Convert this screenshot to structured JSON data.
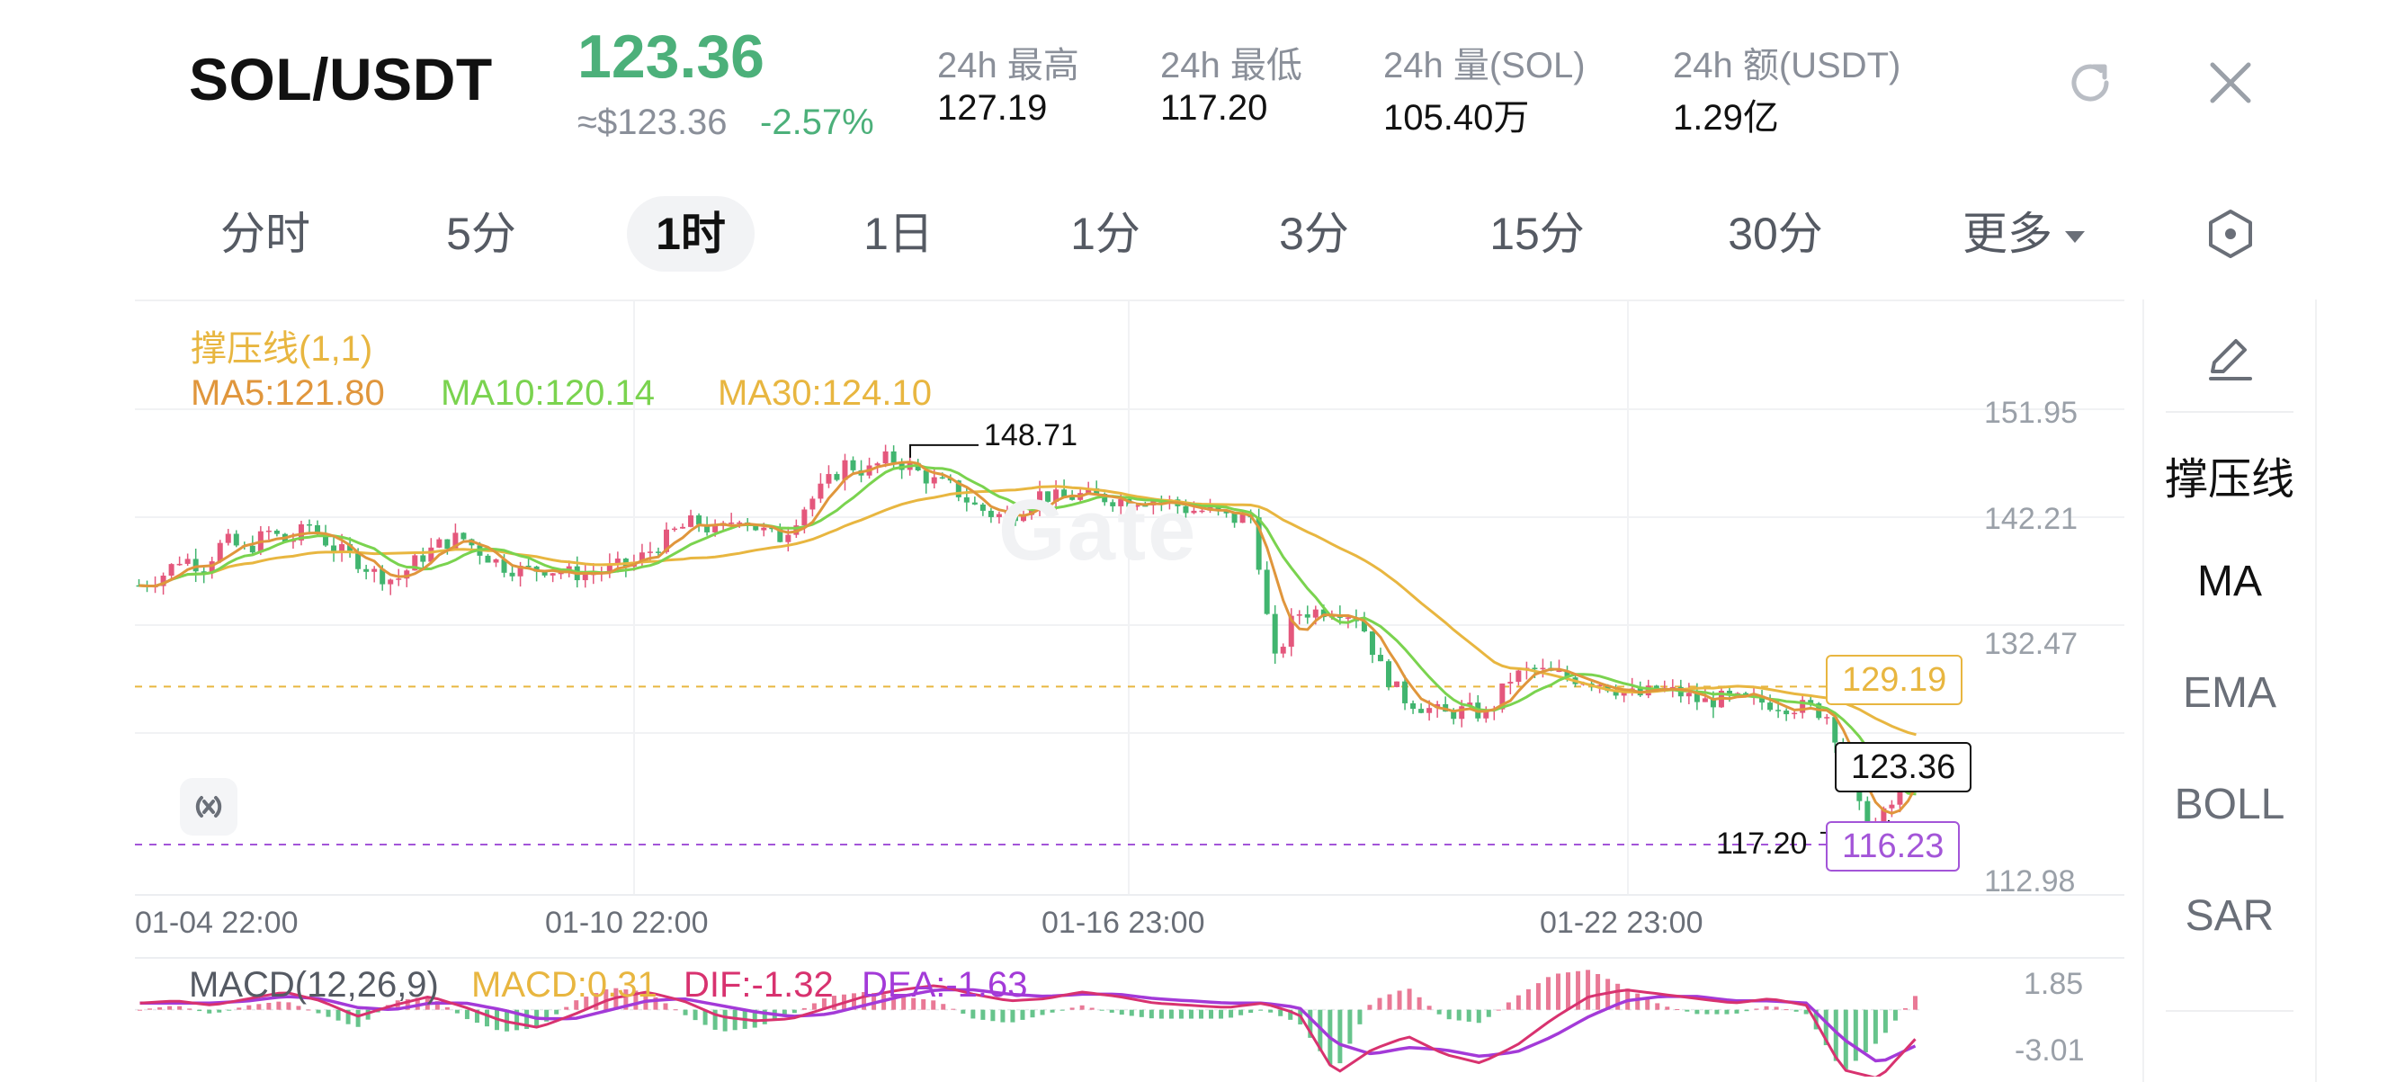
{
  "header": {
    "pair": "SOL/USDT",
    "last_price": "123.36",
    "usd_price": "≈$123.36",
    "change_pct": "-2.57%",
    "stats": [
      {
        "label": "24h 最高",
        "value": "127.19"
      },
      {
        "label": "24h 最低",
        "value": "117.20"
      },
      {
        "label": "24h 量(SOL)",
        "value": "105.40万"
      },
      {
        "label": "24h 额(USDT)",
        "value": "1.29亿"
      }
    ],
    "icons": {
      "refresh": "refresh-icon",
      "close": "close-icon"
    }
  },
  "tabs": {
    "items": [
      "分时",
      "5分",
      "1时",
      "1日",
      "1分",
      "3分",
      "15分",
      "30分"
    ],
    "active": "1时",
    "more": "更多",
    "settings_icon": "hexagon-settings-icon"
  },
  "colors": {
    "up": "#e4577c",
    "down": "#41b56f",
    "ma5": "#e0963c",
    "ma10": "#7ad34f",
    "ma30": "#e8b640",
    "macd": "#e8b640",
    "dif": "#d8326f",
    "dea": "#a33ad8",
    "support_line": "#e8b640",
    "resistance_line": "#a355d8"
  },
  "legend": {
    "indicator": "撑压线(1,1)",
    "ma5": "MA5:121.80",
    "ma10": "MA10:120.14",
    "ma30": "MA30:124.10"
  },
  "macd_legend": {
    "label": "MACD(12,26,9)",
    "macd": "MACD:0.31",
    "dif": "DIF:-1.32",
    "dea": "DEA:-1.63"
  },
  "watermark": "Gate",
  "side_panel": {
    "items": [
      "撑压线",
      "MA",
      "EMA",
      "BOLL",
      "SAR"
    ],
    "active": "撑压线",
    "edit_icon": "pencil-icon"
  },
  "chart_data": {
    "type": "candlestick",
    "y_ticks": [
      "151.95",
      "142.21",
      "132.47",
      "112.98"
    ],
    "ylim": [
      112.98,
      151.95
    ],
    "x_ticks": [
      "01-04 22:00",
      "01-10 22:00",
      "01-16 23:00",
      "01-22 23:00"
    ],
    "high_marker": "148.71",
    "low_marker": "117.20",
    "current_price": "123.36",
    "support_level": "129.19",
    "resistance_level": "116.23",
    "macd_ticks": [
      "1.85",
      "-3.01"
    ],
    "macd_ylim": [
      -3.01,
      1.85
    ],
    "close_path": [
      137.5,
      138.2,
      139.8,
      139.0,
      141.2,
      140.3,
      141.9,
      141.0,
      142.5,
      140.6,
      139.8,
      138.5,
      137.9,
      139.6,
      140.8,
      141.5,
      140.2,
      139.1,
      138.7,
      138.9,
      138.5,
      138.4,
      138.9,
      139.2,
      140.5,
      141.9,
      142.8,
      141.7,
      143.3,
      142.0,
      141.4,
      143.8,
      145.6,
      147.5,
      146.8,
      148.0,
      147.2,
      146.1,
      145.5,
      144.0,
      143.2,
      143.5,
      145.0,
      144.6,
      144.9,
      144.7,
      144.5,
      144.6,
      144.4,
      143.7,
      143.6,
      142.9,
      143.1,
      131.0,
      135.2,
      135.4,
      135.6,
      134.8,
      130.7,
      128.3,
      127.5,
      126.9,
      127.3,
      126.8,
      129.8,
      130.6,
      130.2,
      129.9,
      129.7,
      129.0,
      128.4,
      129.0,
      128.6,
      127.9,
      128.2,
      128.0,
      127.9,
      127.6,
      127.5,
      126.7,
      120.0,
      117.5,
      119.8,
      123.36
    ],
    "macd_path": {
      "dif": [
        0.3,
        0.4,
        0.2,
        0.5,
        0.8,
        0.4,
        -0.3,
        0.2,
        0.6,
        0.1,
        -0.5,
        -0.8,
        -0.2,
        0.5,
        0.8,
        0.4,
        -0.3,
        -0.5,
        -0.4,
        0.1,
        0.6,
        0.9,
        1.1,
        0.7,
        0.4,
        0.5,
        0.8,
        0.6,
        0.3,
        0.2,
        0.1,
        0.3,
        -0.2,
        -2.9,
        -1.8,
        -1.2,
        -2.0,
        -2.4,
        -1.6,
        -0.4,
        0.6,
        0.9,
        0.7,
        0.5,
        0.3,
        0.5,
        0.2,
        -2.7,
        -3.1,
        -1.32
      ],
      "dea": [
        0.3,
        0.3,
        0.3,
        0.4,
        0.6,
        0.5,
        0.1,
        0.0,
        0.3,
        0.3,
        0.0,
        -0.4,
        -0.4,
        0.0,
        0.4,
        0.5,
        0.2,
        -0.1,
        -0.3,
        -0.2,
        0.2,
        0.6,
        0.9,
        0.9,
        0.7,
        0.6,
        0.7,
        0.7,
        0.5,
        0.4,
        0.3,
        0.3,
        0.1,
        -1.5,
        -2.0,
        -1.7,
        -1.8,
        -2.1,
        -1.9,
        -1.2,
        -0.3,
        0.4,
        0.6,
        0.6,
        0.4,
        0.4,
        0.3,
        -1.3,
        -2.4,
        -1.63
      ]
    }
  }
}
